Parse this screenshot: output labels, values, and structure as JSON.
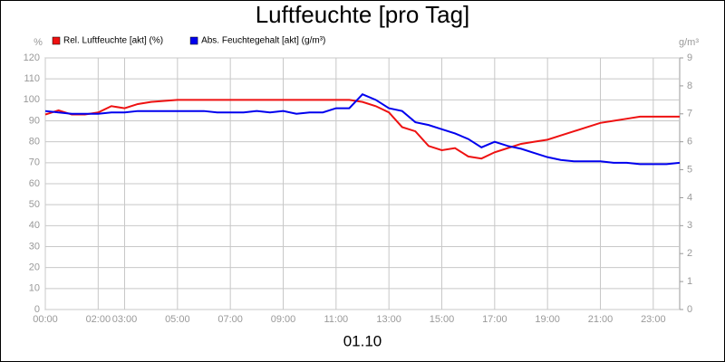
{
  "chart_data": {
    "type": "line",
    "title": "Luftfeuchte [pro Tag]",
    "xlabel": "01.10",
    "ylabel": "%",
    "y2label": "g/m³",
    "x": [
      0,
      0.5,
      1,
      1.5,
      2,
      2.5,
      3,
      3.5,
      4,
      4.5,
      5,
      5.5,
      6,
      6.5,
      7,
      7.5,
      8,
      8.5,
      9,
      9.5,
      10,
      10.5,
      11,
      11.5,
      12,
      12.5,
      13,
      13.5,
      14,
      14.5,
      15,
      15.5,
      16,
      16.5,
      17,
      17.5,
      18,
      18.5,
      19,
      19.5,
      20,
      20.5,
      21,
      21.5,
      22,
      22.5,
      23,
      23.5,
      24
    ],
    "series": [
      {
        "name": "Rel. Luftfeuchte [akt] (%)",
        "color": "#ee1111",
        "axis": "y",
        "values": [
          93,
          95,
          93,
          93,
          94,
          97,
          96,
          98,
          99,
          99.5,
          100,
          100,
          100,
          100,
          100,
          100,
          100,
          100,
          100,
          100,
          100,
          100,
          100,
          100,
          99,
          97,
          94,
          87,
          85,
          78,
          76,
          77,
          73,
          72,
          75,
          77,
          79,
          80,
          81,
          83,
          85,
          87,
          89,
          90,
          91,
          92,
          92,
          92,
          92
        ]
      },
      {
        "name": "Abs. Feuchtegehalt [akt] (g/m³)",
        "color": "#0000ee",
        "axis": "y2",
        "values": [
          7.1,
          7.05,
          7.0,
          7.0,
          7.0,
          7.05,
          7.05,
          7.1,
          7.1,
          7.1,
          7.1,
          7.1,
          7.1,
          7.05,
          7.05,
          7.05,
          7.1,
          7.05,
          7.1,
          7.0,
          7.05,
          7.05,
          7.2,
          7.2,
          7.7,
          7.5,
          7.2,
          7.1,
          6.7,
          6.6,
          6.45,
          6.3,
          6.1,
          5.8,
          6.0,
          5.85,
          5.75,
          5.6,
          5.45,
          5.35,
          5.3,
          5.3,
          5.3,
          5.25,
          5.25,
          5.2,
          5.2,
          5.2,
          5.25
        ]
      }
    ],
    "xlim": [
      0,
      24
    ],
    "xticks": [
      {
        "value": 0,
        "label": "00:00"
      },
      {
        "value": 2,
        "label": "02:00"
      },
      {
        "value": 3,
        "label": "03:00"
      },
      {
        "value": 5,
        "label": "05:00"
      },
      {
        "value": 7,
        "label": "07:00"
      },
      {
        "value": 9,
        "label": "09:00"
      },
      {
        "value": 11,
        "label": "11:00"
      },
      {
        "value": 13,
        "label": "13:00"
      },
      {
        "value": 15,
        "label": "15:00"
      },
      {
        "value": 17,
        "label": "17:00"
      },
      {
        "value": 19,
        "label": "19:00"
      },
      {
        "value": 21,
        "label": "21:00"
      },
      {
        "value": 23,
        "label": "23:00"
      }
    ],
    "ylim": [
      0,
      120
    ],
    "yticks": [
      0,
      10,
      20,
      30,
      40,
      50,
      60,
      70,
      80,
      90,
      100,
      110,
      120
    ],
    "y2lim": [
      0,
      9
    ],
    "y2ticks": [
      0,
      1,
      2,
      3,
      4,
      5,
      6,
      7,
      8,
      9
    ],
    "grid": true
  }
}
